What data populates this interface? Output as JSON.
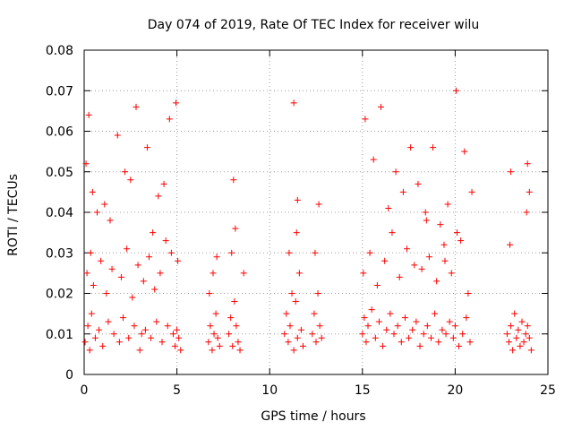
{
  "chart_data": {
    "type": "scatter",
    "title": "Day 074 of 2019, Rate Of TEC Index for receiver wilu",
    "xlabel": "GPS time / hours",
    "ylabel": "ROTI / TECUs",
    "xlim": [
      0,
      25
    ],
    "ylim": [
      0,
      0.08
    ],
    "xticks": [
      0,
      5,
      10,
      15,
      20,
      25
    ],
    "xtick_labels": [
      "0",
      "5",
      "10",
      "15",
      "20",
      "25"
    ],
    "yticks": [
      0,
      0.01,
      0.02,
      0.03,
      0.04,
      0.05,
      0.06,
      0.07,
      0.08
    ],
    "ytick_labels": [
      "0",
      "0.01",
      "0.02",
      "0.03",
      "0.04",
      "0.05",
      "0.06",
      "0.07",
      "0.08"
    ],
    "grid": true,
    "marker": "+",
    "color": "#ff0000",
    "series": [
      {
        "name": "ROTI",
        "x": [
          0.05,
          0.2,
          0.3,
          0.4,
          0.6,
          0.8,
          1.0,
          1.3,
          1.6,
          1.9,
          2.1,
          2.4,
          2.7,
          3.0,
          3.1,
          3.3,
          3.6,
          3.9,
          4.2,
          4.5,
          4.8,
          4.9,
          5.0,
          5.1,
          5.2,
          0.15,
          0.35,
          0.5,
          0.9,
          1.2,
          1.5,
          2.0,
          2.3,
          2.6,
          2.9,
          3.2,
          3.5,
          3.8,
          4.1,
          4.4,
          4.7,
          5.05,
          0.1,
          0.25,
          0.45,
          0.7,
          1.1,
          1.4,
          1.8,
          2.2,
          2.5,
          2.8,
          3.4,
          3.7,
          4.0,
          4.3,
          4.6,
          4.95,
          6.7,
          6.8,
          6.9,
          7.0,
          7.1,
          7.2,
          7.3,
          6.75,
          6.95,
          7.15,
          7.8,
          7.9,
          8.0,
          8.1,
          8.2,
          8.3,
          8.4,
          8.6,
          7.95,
          8.15,
          8.05,
          10.8,
          10.9,
          11.0,
          11.1,
          11.2,
          11.3,
          11.4,
          11.5,
          11.6,
          11.7,
          11.8,
          11.3,
          11.5,
          11.05,
          11.45,
          12.3,
          12.4,
          12.5,
          12.6,
          12.7,
          12.8,
          12.45,
          12.65,
          15.0,
          15.1,
          15.2,
          15.3,
          15.5,
          15.7,
          15.9,
          16.1,
          16.3,
          16.5,
          16.7,
          16.9,
          17.1,
          17.3,
          17.5,
          17.7,
          17.9,
          18.1,
          18.3,
          18.5,
          18.7,
          18.9,
          19.1,
          19.3,
          19.5,
          19.7,
          19.9,
          20.0,
          20.2,
          20.4,
          20.6,
          20.8,
          15.05,
          15.4,
          15.8,
          16.2,
          16.6,
          17.0,
          17.4,
          17.8,
          18.2,
          18.6,
          19.0,
          19.4,
          19.8,
          20.3,
          20.7,
          15.15,
          15.6,
          16.0,
          16.4,
          16.8,
          17.2,
          17.6,
          18.0,
          18.4,
          18.8,
          19.2,
          19.6,
          20.1,
          20.5,
          20.9,
          20.05,
          19.45,
          18.45,
          22.8,
          22.9,
          23.0,
          23.1,
          23.2,
          23.3,
          23.4,
          23.5,
          23.6,
          23.7,
          23.8,
          23.9,
          24.0,
          24.1,
          23.0,
          23.9,
          23.85,
          24.0,
          22.95
        ],
        "y": [
          0.008,
          0.012,
          0.006,
          0.015,
          0.009,
          0.011,
          0.007,
          0.013,
          0.01,
          0.008,
          0.014,
          0.009,
          0.012,
          0.006,
          0.01,
          0.011,
          0.009,
          0.013,
          0.008,
          0.012,
          0.01,
          0.007,
          0.011,
          0.009,
          0.006,
          0.025,
          0.03,
          0.022,
          0.028,
          0.02,
          0.026,
          0.024,
          0.031,
          0.019,
          0.027,
          0.023,
          0.029,
          0.021,
          0.025,
          0.033,
          0.03,
          0.028,
          0.052,
          0.064,
          0.045,
          0.04,
          0.042,
          0.038,
          0.059,
          0.05,
          0.048,
          0.066,
          0.056,
          0.035,
          0.044,
          0.047,
          0.063,
          0.067,
          0.008,
          0.012,
          0.006,
          0.01,
          0.015,
          0.009,
          0.007,
          0.02,
          0.025,
          0.029,
          0.01,
          0.014,
          0.007,
          0.018,
          0.012,
          0.008,
          0.006,
          0.025,
          0.03,
          0.036,
          0.048,
          0.01,
          0.015,
          0.008,
          0.012,
          0.02,
          0.006,
          0.018,
          0.009,
          0.025,
          0.011,
          0.007,
          0.067,
          0.043,
          0.03,
          0.035,
          0.01,
          0.015,
          0.008,
          0.02,
          0.012,
          0.009,
          0.03,
          0.042,
          0.01,
          0.014,
          0.008,
          0.012,
          0.016,
          0.009,
          0.013,
          0.007,
          0.011,
          0.015,
          0.01,
          0.012,
          0.008,
          0.014,
          0.009,
          0.011,
          0.013,
          0.007,
          0.01,
          0.012,
          0.009,
          0.015,
          0.008,
          0.011,
          0.01,
          0.013,
          0.009,
          0.012,
          0.007,
          0.01,
          0.014,
          0.008,
          0.025,
          0.03,
          0.022,
          0.028,
          0.035,
          0.024,
          0.031,
          0.027,
          0.026,
          0.029,
          0.023,
          0.032,
          0.025,
          0.033,
          0.02,
          0.063,
          0.053,
          0.066,
          0.041,
          0.05,
          0.045,
          0.056,
          0.047,
          0.04,
          0.056,
          0.037,
          0.042,
          0.035,
          0.055,
          0.045,
          0.07,
          0.028,
          0.038,
          0.01,
          0.008,
          0.012,
          0.006,
          0.015,
          0.009,
          0.011,
          0.007,
          0.013,
          0.008,
          0.01,
          0.012,
          0.009,
          0.006,
          0.05,
          0.052,
          0.04,
          0.045,
          0.032
        ]
      }
    ]
  }
}
